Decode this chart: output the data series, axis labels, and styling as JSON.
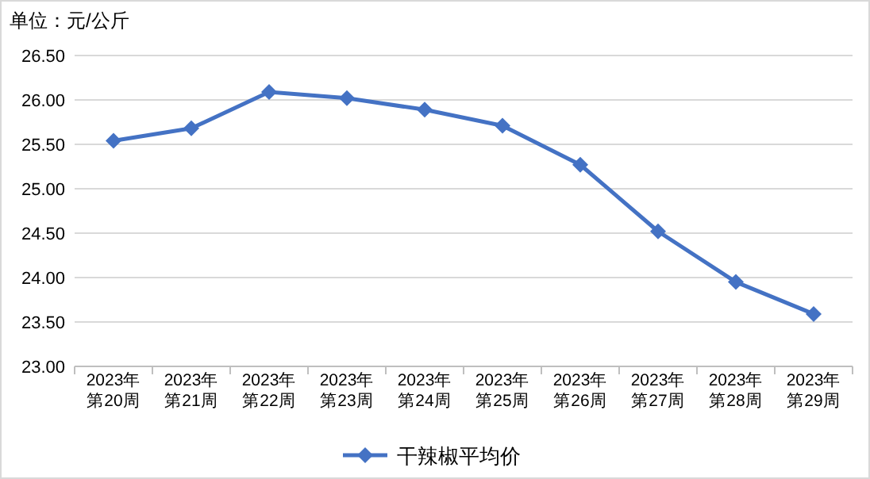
{
  "chart_data": {
    "type": "line",
    "ylabel": "单位：元/公斤",
    "categories": [
      "2023年第20周",
      "2023年第21周",
      "2023年第22周",
      "2023年第23周",
      "2023年第24周",
      "2023年第25周",
      "2023年第26周",
      "2023年第27周",
      "2023年第28周",
      "2023年第29周"
    ],
    "series": [
      {
        "name": "干辣椒平均价",
        "color": "#4472c4",
        "values": [
          25.54,
          25.68,
          26.09,
          26.02,
          25.89,
          25.71,
          25.27,
          24.52,
          23.95,
          23.59
        ]
      }
    ],
    "ylim": [
      23,
      26.5
    ],
    "yticks": [
      {
        "value": 23,
        "label": "23.00"
      },
      {
        "value": 23.5,
        "label": "23.50"
      },
      {
        "value": 24,
        "label": "24.00"
      },
      {
        "value": 24.5,
        "label": "24.50"
      },
      {
        "value": 25,
        "label": "25.00"
      },
      {
        "value": 25.5,
        "label": "25.50"
      },
      {
        "value": 26,
        "label": "26.00"
      },
      {
        "value": 26.5,
        "label": "26.50"
      }
    ],
    "grid": "y",
    "legend": "bottom",
    "marker": "diamond",
    "line_style": "solid"
  }
}
